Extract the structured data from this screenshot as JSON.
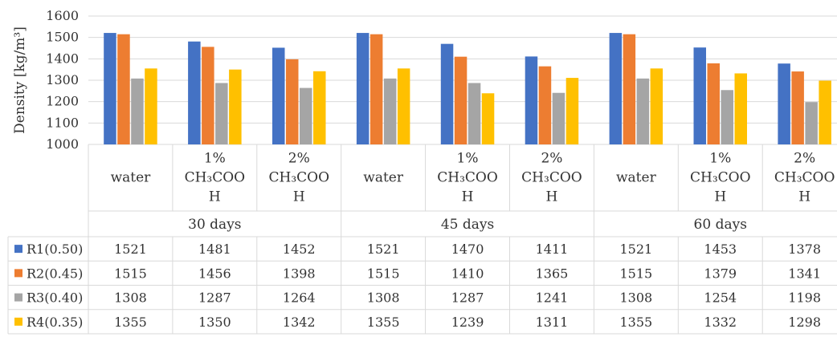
{
  "chart_data": {
    "type": "bar",
    "ylabel": "Density  [kg/m³]",
    "ylim": [
      1000,
      1600
    ],
    "yticks": [
      1000,
      1100,
      1200,
      1300,
      1400,
      1500,
      1600
    ],
    "grid": true,
    "legend": "data-table-left",
    "groups": [
      {
        "label": "30 days",
        "categories": [
          [
            "water"
          ],
          [
            "1%",
            "CH₃COO",
            "H"
          ],
          [
            "2%",
            "CH₃COO",
            "H"
          ]
        ]
      },
      {
        "label": "45 days",
        "categories": [
          [
            "water"
          ],
          [
            "1%",
            "CH₃COO",
            "H"
          ],
          [
            "2%",
            "CH₃COO",
            "H"
          ]
        ]
      },
      {
        "label": "60 days",
        "categories": [
          [
            "water"
          ],
          [
            "1%",
            "CH₃COO",
            "H"
          ],
          [
            "2%",
            "CH₃COO",
            "H"
          ]
        ]
      }
    ],
    "series": [
      {
        "name": "R1(0.50)",
        "color": "#4472c4",
        "values": [
          1521,
          1481,
          1452,
          1521,
          1470,
          1411,
          1521,
          1453,
          1378
        ]
      },
      {
        "name": "R2(0.45)",
        "color": "#ed7d31",
        "values": [
          1515,
          1456,
          1398,
          1515,
          1410,
          1365,
          1515,
          1379,
          1341
        ]
      },
      {
        "name": "R3(0.40)",
        "color": "#a5a5a5",
        "values": [
          1308,
          1287,
          1264,
          1308,
          1287,
          1241,
          1308,
          1254,
          1198
        ]
      },
      {
        "name": "R4(0.35)",
        "color": "#ffc000",
        "values": [
          1355,
          1350,
          1342,
          1355,
          1239,
          1311,
          1355,
          1332,
          1298
        ]
      }
    ]
  }
}
